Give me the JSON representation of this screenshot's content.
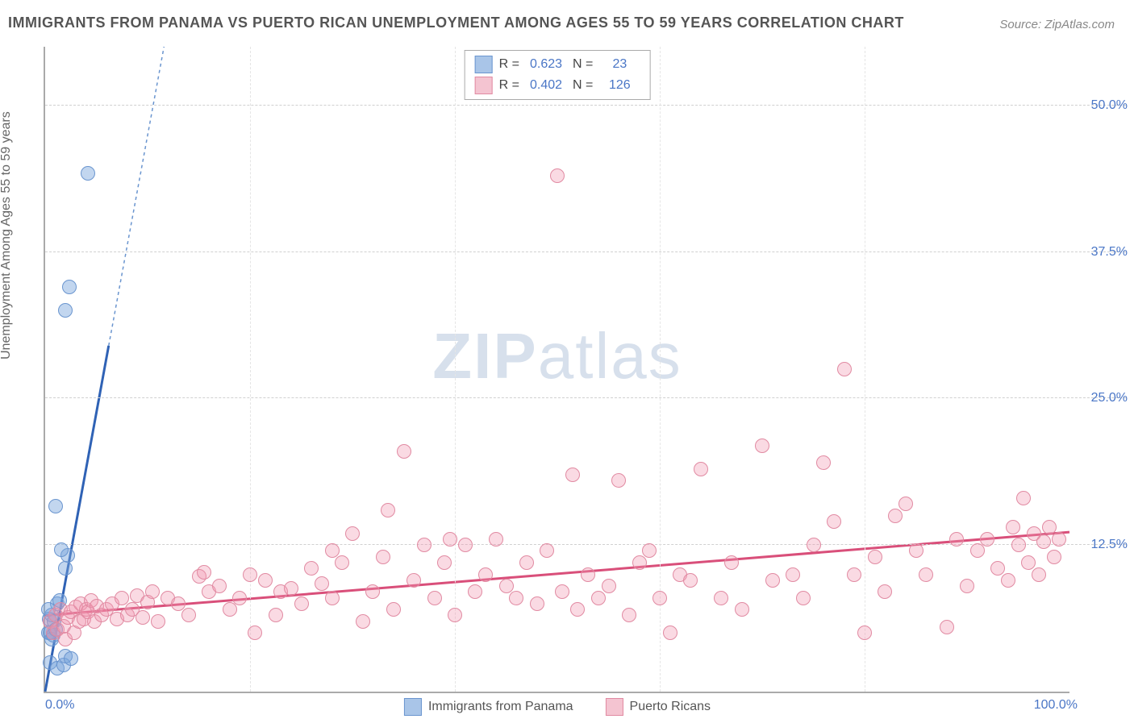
{
  "title": "IMMIGRANTS FROM PANAMA VS PUERTO RICAN UNEMPLOYMENT AMONG AGES 55 TO 59 YEARS CORRELATION CHART",
  "source_prefix": "Source: ",
  "source_name": "ZipAtlas.com",
  "y_axis_label": "Unemployment Among Ages 55 to 59 years",
  "watermark_bold": "ZIP",
  "watermark_rest": "atlas",
  "chart": {
    "type": "scatter",
    "xlim": [
      0,
      100
    ],
    "ylim": [
      0,
      55
    ],
    "y_ticks": [
      {
        "value": 12.5,
        "label": "12.5%"
      },
      {
        "value": 25.0,
        "label": "25.0%"
      },
      {
        "value": 37.5,
        "label": "37.5%"
      },
      {
        "value": 50.0,
        "label": "50.0%"
      }
    ],
    "x_ticks": [
      {
        "value": 0,
        "label": "0.0%",
        "pos": "left"
      },
      {
        "value": 100,
        "label": "100.0%",
        "pos": "right"
      }
    ],
    "x_grid_values": [
      20,
      40,
      60,
      80
    ],
    "grid_color": "#d0d0d0",
    "axis_color": "#aaaaaa",
    "tick_label_color": "#4a76c6",
    "background_color": "#ffffff",
    "marker_radius": 9,
    "marker_border_width": 1,
    "series": [
      {
        "name": "Immigrants from Panama",
        "fill_color": "rgba(120,165,220,0.45)",
        "stroke_color": "#6a95cf",
        "swatch_fill": "#a9c5e8",
        "swatch_border": "#6a95cf",
        "trend_line_color": "#2f62b5",
        "trend_line_width": 3,
        "trend_dash_color": "#6a95cf",
        "R": "0.623",
        "N": "23",
        "trend": {
          "x1": 0,
          "y1": 0,
          "x2": 6.2,
          "y2": 29.5,
          "dash_x2": 11.6,
          "dash_y2": 55
        },
        "points": [
          [
            0.3,
            5.0
          ],
          [
            0.5,
            5.0
          ],
          [
            0.6,
            4.5
          ],
          [
            0.8,
            4.8
          ],
          [
            0.4,
            6.2
          ],
          [
            0.6,
            6.5
          ],
          [
            0.9,
            6.0
          ],
          [
            1.0,
            5.3
          ],
          [
            1.2,
            7.5
          ],
          [
            1.4,
            7.8
          ],
          [
            0.5,
            2.5
          ],
          [
            1.2,
            2.0
          ],
          [
            1.8,
            2.3
          ],
          [
            2.0,
            3.0
          ],
          [
            2.5,
            2.8
          ],
          [
            2.0,
            10.5
          ],
          [
            2.2,
            11.6
          ],
          [
            1.6,
            12.1
          ],
          [
            1.0,
            15.8
          ],
          [
            2.0,
            32.5
          ],
          [
            2.4,
            34.5
          ],
          [
            4.2,
            44.2
          ],
          [
            0.3,
            7.0
          ]
        ]
      },
      {
        "name": "Puerto Ricans",
        "fill_color": "rgba(240,150,175,0.35)",
        "stroke_color": "#e18aa2",
        "swatch_fill": "#f4c4d1",
        "swatch_border": "#e18aa2",
        "trend_line_color": "#d94f7a",
        "trend_line_width": 3,
        "R": "0.402",
        "N": "126",
        "trend": {
          "x1": 0,
          "y1": 6.5,
          "x2": 100,
          "y2": 13.6
        },
        "points": [
          [
            0.5,
            6.0
          ],
          [
            0.8,
            5.0
          ],
          [
            1.0,
            6.5
          ],
          [
            1.2,
            5.3
          ],
          [
            1.5,
            7.0
          ],
          [
            1.8,
            5.6
          ],
          [
            2.0,
            4.5
          ],
          [
            2.2,
            6.3
          ],
          [
            2.5,
            6.8
          ],
          [
            2.8,
            5.0
          ],
          [
            3.0,
            7.2
          ],
          [
            3.3,
            6.0
          ],
          [
            3.5,
            7.5
          ],
          [
            3.8,
            6.2
          ],
          [
            4.0,
            7.0
          ],
          [
            4.2,
            6.8
          ],
          [
            4.5,
            7.8
          ],
          [
            4.8,
            6.0
          ],
          [
            5.0,
            7.3
          ],
          [
            5.5,
            6.5
          ],
          [
            6.0,
            7.0
          ],
          [
            6.5,
            7.5
          ],
          [
            7.0,
            6.2
          ],
          [
            7.5,
            8.0
          ],
          [
            8.0,
            6.5
          ],
          [
            8.5,
            7.0
          ],
          [
            9.0,
            8.2
          ],
          [
            9.5,
            6.3
          ],
          [
            10.0,
            7.6
          ],
          [
            10.5,
            8.5
          ],
          [
            11.0,
            6.0
          ],
          [
            12.0,
            8.0
          ],
          [
            13.0,
            7.5
          ],
          [
            14.0,
            6.5
          ],
          [
            15.0,
            9.8
          ],
          [
            15.5,
            10.2
          ],
          [
            16.0,
            8.5
          ],
          [
            17.0,
            9.0
          ],
          [
            18.0,
            7.0
          ],
          [
            19.0,
            8.0
          ],
          [
            20.0,
            10.0
          ],
          [
            20.5,
            5.0
          ],
          [
            21.5,
            9.5
          ],
          [
            22.5,
            6.5
          ],
          [
            23.0,
            8.5
          ],
          [
            24.0,
            8.8
          ],
          [
            25.0,
            7.5
          ],
          [
            26.0,
            10.5
          ],
          [
            27.0,
            9.2
          ],
          [
            28.0,
            8.0
          ],
          [
            28.0,
            12.0
          ],
          [
            29.0,
            11.0
          ],
          [
            30.0,
            13.5
          ],
          [
            31.0,
            6.0
          ],
          [
            32.0,
            8.5
          ],
          [
            33.0,
            11.5
          ],
          [
            33.5,
            15.5
          ],
          [
            34.0,
            7.0
          ],
          [
            35.0,
            20.5
          ],
          [
            36.0,
            9.5
          ],
          [
            37.0,
            12.5
          ],
          [
            38.0,
            8.0
          ],
          [
            39.0,
            11.0
          ],
          [
            39.5,
            13.0
          ],
          [
            40.0,
            6.5
          ],
          [
            41.0,
            12.5
          ],
          [
            42.0,
            8.5
          ],
          [
            43.0,
            10.0
          ],
          [
            44.0,
            13.0
          ],
          [
            45.0,
            9.0
          ],
          [
            46.0,
            8.0
          ],
          [
            47.0,
            11.0
          ],
          [
            48.0,
            7.5
          ],
          [
            49.0,
            12.0
          ],
          [
            50.0,
            44.0
          ],
          [
            50.5,
            8.5
          ],
          [
            51.5,
            18.5
          ],
          [
            52.0,
            7.0
          ],
          [
            53.0,
            10.0
          ],
          [
            54.0,
            8.0
          ],
          [
            55.0,
            9.0
          ],
          [
            56.0,
            18.0
          ],
          [
            57.0,
            6.5
          ],
          [
            58.0,
            11.0
          ],
          [
            59.0,
            12.0
          ],
          [
            60.0,
            8.0
          ],
          [
            61.0,
            5.0
          ],
          [
            62.0,
            10.0
          ],
          [
            63.0,
            9.5
          ],
          [
            64.0,
            19.0
          ],
          [
            66.0,
            8.0
          ],
          [
            67.0,
            11.0
          ],
          [
            68.0,
            7.0
          ],
          [
            70.0,
            21.0
          ],
          [
            71.0,
            9.5
          ],
          [
            73.0,
            10.0
          ],
          [
            74.0,
            8.0
          ],
          [
            75.0,
            12.5
          ],
          [
            76.0,
            19.5
          ],
          [
            77.0,
            14.5
          ],
          [
            78.0,
            27.5
          ],
          [
            79.0,
            10.0
          ],
          [
            80.0,
            5.0
          ],
          [
            81.0,
            11.5
          ],
          [
            82.0,
            8.5
          ],
          [
            83.0,
            15.0
          ],
          [
            84.0,
            16.0
          ],
          [
            85.0,
            12.0
          ],
          [
            86.0,
            10.0
          ],
          [
            88.0,
            5.5
          ],
          [
            89.0,
            13.0
          ],
          [
            90.0,
            9.0
          ],
          [
            91.0,
            12.0
          ],
          [
            92.0,
            13.0
          ],
          [
            93.0,
            10.5
          ],
          [
            94.0,
            9.5
          ],
          [
            94.5,
            14.0
          ],
          [
            95.0,
            12.5
          ],
          [
            95.5,
            16.5
          ],
          [
            96.0,
            11.0
          ],
          [
            96.5,
            13.5
          ],
          [
            97.0,
            10.0
          ],
          [
            97.5,
            12.8
          ],
          [
            98.0,
            14.0
          ],
          [
            98.5,
            11.5
          ],
          [
            99.0,
            13.0
          ]
        ]
      }
    ]
  },
  "legend_top_labels": {
    "r_label": "R =",
    "n_label": "N ="
  },
  "legend_bottom_series": [
    "Immigrants from Panama",
    "Puerto Ricans"
  ]
}
